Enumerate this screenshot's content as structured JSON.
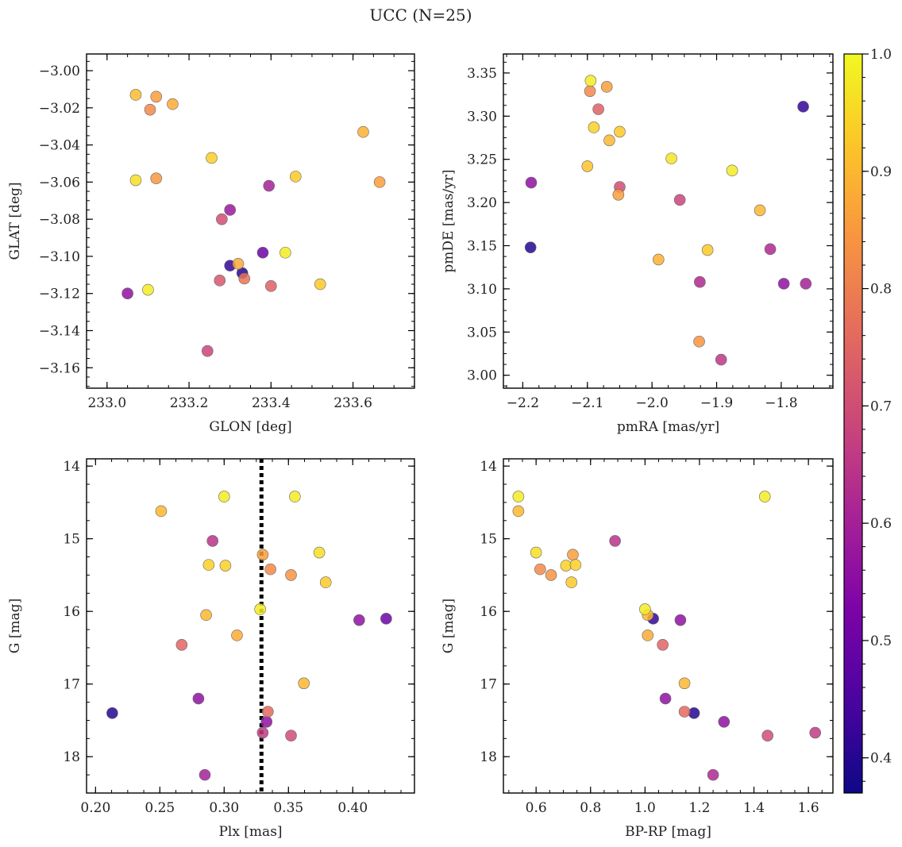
{
  "figure": {
    "title": "UCC (N=25)"
  },
  "colorbar": {
    "cmap": "plasma",
    "range": [
      0.37,
      1.0
    ],
    "ticks": [
      "0.4",
      "0.5",
      "0.6",
      "0.7",
      "0.8",
      "0.9",
      "1.0"
    ],
    "tick_values": [
      0.4,
      0.5,
      0.6,
      0.7,
      0.8,
      0.9,
      1.0
    ]
  },
  "chart_data": [
    {
      "type": "scatter",
      "xlabel": "GLON [deg]",
      "ylabel": "GLAT [deg]",
      "xlim": [
        232.95,
        233.75
      ],
      "ylim": [
        -3.171,
        -2.991
      ],
      "xticks": [
        233.0,
        233.2,
        233.4,
        233.6
      ],
      "xtick_labels": [
        "233.0",
        "233.2",
        "233.4",
        "233.6"
      ],
      "yticks": [
        -3.16,
        -3.14,
        -3.12,
        -3.1,
        -3.08,
        -3.06,
        -3.04,
        -3.02,
        -3.0
      ],
      "ytick_labels": [
        "−3.16",
        "−3.14",
        "−3.12",
        "−3.10",
        "−3.08",
        "−3.06",
        "−3.04",
        "−3.02",
        "−3.00"
      ],
      "y_inverted": false,
      "points": [
        {
          "x": 233.07,
          "y": -3.013,
          "c": 0.91
        },
        {
          "x": 233.12,
          "y": -3.014,
          "c": 0.86
        },
        {
          "x": 233.105,
          "y": -3.021,
          "c": 0.82
        },
        {
          "x": 233.16,
          "y": -3.018,
          "c": 0.88
        },
        {
          "x": 233.255,
          "y": -3.047,
          "c": 0.94
        },
        {
          "x": 233.07,
          "y": -3.059,
          "c": 0.96
        },
        {
          "x": 233.12,
          "y": -3.058,
          "c": 0.85
        },
        {
          "x": 233.625,
          "y": -3.033,
          "c": 0.89
        },
        {
          "x": 233.665,
          "y": -3.06,
          "c": 0.86
        },
        {
          "x": 233.46,
          "y": -3.057,
          "c": 0.93
        },
        {
          "x": 233.395,
          "y": -3.062,
          "c": 0.6
        },
        {
          "x": 233.3,
          "y": -3.075,
          "c": 0.58
        },
        {
          "x": 233.28,
          "y": -3.08,
          "c": 0.7
        },
        {
          "x": 233.38,
          "y": -3.098,
          "c": 0.5
        },
        {
          "x": 233.435,
          "y": -3.098,
          "c": 0.98
        },
        {
          "x": 233.3,
          "y": -3.105,
          "c": 0.42
        },
        {
          "x": 233.32,
          "y": -3.104,
          "c": 0.88
        },
        {
          "x": 233.33,
          "y": -3.109,
          "c": 0.4
        },
        {
          "x": 233.275,
          "y": -3.113,
          "c": 0.72
        },
        {
          "x": 233.335,
          "y": -3.112,
          "c": 0.78
        },
        {
          "x": 233.4,
          "y": -3.116,
          "c": 0.74
        },
        {
          "x": 233.52,
          "y": -3.115,
          "c": 0.93
        },
        {
          "x": 233.05,
          "y": -3.12,
          "c": 0.56
        },
        {
          "x": 233.1,
          "y": -3.118,
          "c": 0.98
        },
        {
          "x": 233.245,
          "y": -3.151,
          "c": 0.68
        }
      ]
    },
    {
      "type": "scatter",
      "xlabel": "pmRA [mas/yr]",
      "ylabel": "pmDE [mas/yr]",
      "xlim": [
        -2.23,
        -1.72
      ],
      "ylim": [
        2.985,
        3.372
      ],
      "xticks": [
        -2.2,
        -2.1,
        -2.0,
        -1.9,
        -1.8
      ],
      "xtick_labels": [
        "−2.2",
        "−2.1",
        "−2.0",
        "−1.9",
        "−1.8"
      ],
      "yticks": [
        3.0,
        3.05,
        3.1,
        3.15,
        3.2,
        3.25,
        3.3,
        3.35
      ],
      "ytick_labels": [
        "3.00",
        "3.05",
        "3.10",
        "3.15",
        "3.20",
        "3.25",
        "3.30",
        "3.35"
      ],
      "y_inverted": false,
      "points": [
        {
          "x": -2.095,
          "y": 3.341,
          "c": 0.98
        },
        {
          "x": -2.07,
          "y": 3.334,
          "c": 0.86
        },
        {
          "x": -2.096,
          "y": 3.329,
          "c": 0.82
        },
        {
          "x": -2.083,
          "y": 3.308,
          "c": 0.74
        },
        {
          "x": -2.09,
          "y": 3.287,
          "c": 0.94
        },
        {
          "x": -2.05,
          "y": 3.282,
          "c": 0.93
        },
        {
          "x": -2.066,
          "y": 3.272,
          "c": 0.9
        },
        {
          "x": -1.766,
          "y": 3.311,
          "c": 0.42
        },
        {
          "x": -2.1,
          "y": 3.242,
          "c": 0.92
        },
        {
          "x": -1.97,
          "y": 3.251,
          "c": 0.97
        },
        {
          "x": -1.876,
          "y": 3.237,
          "c": 0.98
        },
        {
          "x": -2.187,
          "y": 3.223,
          "c": 0.56
        },
        {
          "x": -2.05,
          "y": 3.218,
          "c": 0.7
        },
        {
          "x": -2.052,
          "y": 3.209,
          "c": 0.86
        },
        {
          "x": -1.957,
          "y": 3.203,
          "c": 0.68
        },
        {
          "x": -1.833,
          "y": 3.191,
          "c": 0.9
        },
        {
          "x": -2.188,
          "y": 3.148,
          "c": 0.4
        },
        {
          "x": -1.914,
          "y": 3.145,
          "c": 0.93
        },
        {
          "x": -1.817,
          "y": 3.146,
          "c": 0.62
        },
        {
          "x": -1.99,
          "y": 3.134,
          "c": 0.89
        },
        {
          "x": -1.926,
          "y": 3.108,
          "c": 0.62
        },
        {
          "x": -1.796,
          "y": 3.106,
          "c": 0.56
        },
        {
          "x": -1.762,
          "y": 3.106,
          "c": 0.6
        },
        {
          "x": -1.927,
          "y": 3.039,
          "c": 0.84
        },
        {
          "x": -1.893,
          "y": 3.018,
          "c": 0.65
        }
      ]
    },
    {
      "type": "scatter",
      "xlabel": "Plx [mas]",
      "ylabel": "G [mag]",
      "xlim": [
        0.193,
        0.448
      ],
      "ylim": [
        18.5,
        13.9
      ],
      "xticks": [
        0.2,
        0.25,
        0.3,
        0.35,
        0.4
      ],
      "xtick_labels": [
        "0.20",
        "0.25",
        "0.30",
        "0.35",
        "0.40"
      ],
      "yticks": [
        14,
        15,
        16,
        17,
        18
      ],
      "ytick_labels": [
        "14",
        "15",
        "16",
        "17",
        "18"
      ],
      "y_inverted": true,
      "vline": {
        "x": 0.329,
        "style": "dotted"
      },
      "points": [
        {
          "x": 0.3,
          "y": 14.42,
          "c": 0.98
        },
        {
          "x": 0.355,
          "y": 14.42,
          "c": 0.98
        },
        {
          "x": 0.251,
          "y": 14.62,
          "c": 0.9
        },
        {
          "x": 0.291,
          "y": 15.03,
          "c": 0.64
        },
        {
          "x": 0.374,
          "y": 15.19,
          "c": 0.96
        },
        {
          "x": 0.33,
          "y": 15.22,
          "c": 0.86
        },
        {
          "x": 0.288,
          "y": 15.36,
          "c": 0.94
        },
        {
          "x": 0.301,
          "y": 15.37,
          "c": 0.94
        },
        {
          "x": 0.336,
          "y": 15.42,
          "c": 0.82
        },
        {
          "x": 0.352,
          "y": 15.5,
          "c": 0.84
        },
        {
          "x": 0.379,
          "y": 15.6,
          "c": 0.93
        },
        {
          "x": 0.328,
          "y": 15.97,
          "c": 0.98
        },
        {
          "x": 0.286,
          "y": 16.05,
          "c": 0.9
        },
        {
          "x": 0.426,
          "y": 16.1,
          "c": 0.5
        },
        {
          "x": 0.405,
          "y": 16.12,
          "c": 0.56
        },
        {
          "x": 0.31,
          "y": 16.33,
          "c": 0.88
        },
        {
          "x": 0.267,
          "y": 16.46,
          "c": 0.75
        },
        {
          "x": 0.362,
          "y": 16.99,
          "c": 0.9
        },
        {
          "x": 0.28,
          "y": 17.2,
          "c": 0.56
        },
        {
          "x": 0.213,
          "y": 17.4,
          "c": 0.4
        },
        {
          "x": 0.334,
          "y": 17.38,
          "c": 0.76
        },
        {
          "x": 0.333,
          "y": 17.52,
          "c": 0.56
        },
        {
          "x": 0.33,
          "y": 17.67,
          "c": 0.66
        },
        {
          "x": 0.352,
          "y": 17.71,
          "c": 0.7
        },
        {
          "x": 0.285,
          "y": 18.25,
          "c": 0.6
        }
      ]
    },
    {
      "type": "scatter",
      "xlabel": "BP-RP [mag]",
      "ylabel": "G [mag]",
      "xlim": [
        0.48,
        1.69
      ],
      "ylim": [
        18.5,
        13.9
      ],
      "xticks": [
        0.6,
        0.8,
        1.0,
        1.2,
        1.4,
        1.6
      ],
      "xtick_labels": [
        "0.6",
        "0.8",
        "1.0",
        "1.2",
        "1.4",
        "1.6"
      ],
      "yticks": [
        14,
        15,
        16,
        17,
        18
      ],
      "ytick_labels": [
        "14",
        "15",
        "16",
        "17",
        "18"
      ],
      "y_inverted": true,
      "points": [
        {
          "x": 0.535,
          "y": 14.42,
          "c": 0.98
        },
        {
          "x": 1.44,
          "y": 14.42,
          "c": 0.98
        },
        {
          "x": 0.535,
          "y": 14.62,
          "c": 0.9
        },
        {
          "x": 0.89,
          "y": 15.03,
          "c": 0.64
        },
        {
          "x": 0.6,
          "y": 15.19,
          "c": 0.96
        },
        {
          "x": 0.735,
          "y": 15.22,
          "c": 0.86
        },
        {
          "x": 0.71,
          "y": 15.37,
          "c": 0.94
        },
        {
          "x": 0.745,
          "y": 15.36,
          "c": 0.94
        },
        {
          "x": 0.615,
          "y": 15.42,
          "c": 0.82
        },
        {
          "x": 0.655,
          "y": 15.5,
          "c": 0.84
        },
        {
          "x": 0.73,
          "y": 15.6,
          "c": 0.93
        },
        {
          "x": 1.0,
          "y": 15.97,
          "c": 0.98
        },
        {
          "x": 1.01,
          "y": 16.05,
          "c": 0.9
        },
        {
          "x": 1.03,
          "y": 16.1,
          "c": 0.42
        },
        {
          "x": 1.13,
          "y": 16.12,
          "c": 0.56
        },
        {
          "x": 1.01,
          "y": 16.33,
          "c": 0.88
        },
        {
          "x": 1.065,
          "y": 16.46,
          "c": 0.75
        },
        {
          "x": 1.145,
          "y": 16.99,
          "c": 0.9
        },
        {
          "x": 1.075,
          "y": 17.2,
          "c": 0.56
        },
        {
          "x": 1.145,
          "y": 17.38,
          "c": 0.76
        },
        {
          "x": 1.18,
          "y": 17.4,
          "c": 0.4
        },
        {
          "x": 1.29,
          "y": 17.52,
          "c": 0.56
        },
        {
          "x": 1.45,
          "y": 17.71,
          "c": 0.7
        },
        {
          "x": 1.625,
          "y": 17.67,
          "c": 0.66
        },
        {
          "x": 1.25,
          "y": 18.25,
          "c": 0.62
        }
      ]
    }
  ]
}
